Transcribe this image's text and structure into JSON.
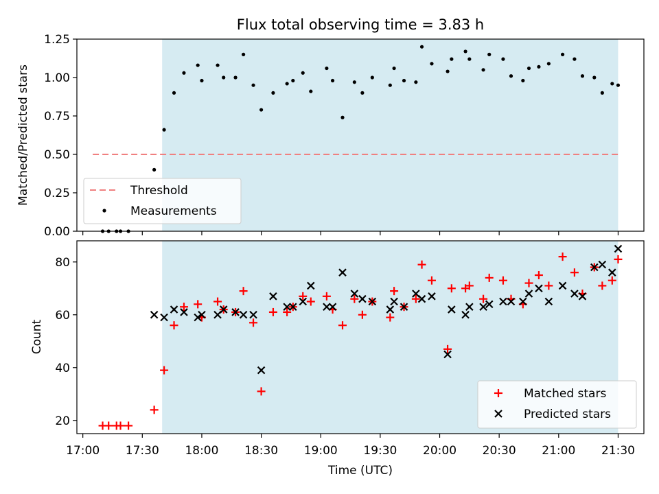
{
  "chart_data": [
    {
      "type": "scatter",
      "title": "Flux total observing time = 3.83 h",
      "xlabel": "",
      "ylabel": "Matched/Predicted stars",
      "ylim": [
        0,
        1.25
      ],
      "yticks": [
        "0.00",
        "0.25",
        "0.50",
        "0.75",
        "1.00",
        "1.25"
      ],
      "x_range": [
        "16:57",
        "21:43"
      ],
      "shaded_region": [
        "17:40",
        "21:30"
      ],
      "threshold": {
        "value": 0.5,
        "x": [
          "17:05",
          "21:30"
        ]
      },
      "legend": {
        "placement": "lower-left",
        "entries": [
          "Threshold",
          "Measurements"
        ]
      },
      "series": [
        {
          "name": "Measurements",
          "x": [
            "17:10",
            "17:13",
            "17:17",
            "17:19",
            "17:23",
            "17:36",
            "17:41",
            "17:46",
            "17:51",
            "17:58",
            "18:00",
            "18:08",
            "18:11",
            "18:17",
            "18:21",
            "18:26",
            "18:30",
            "18:36",
            "18:43",
            "18:46",
            "18:51",
            "18:55",
            "19:03",
            "19:06",
            "19:11",
            "19:17",
            "19:21",
            "19:26",
            "19:35",
            "19:37",
            "19:42",
            "19:48",
            "19:51",
            "19:56",
            "20:04",
            "20:06",
            "20:13",
            "20:15",
            "20:22",
            "20:25",
            "20:32",
            "20:36",
            "20:42",
            "20:45",
            "20:50",
            "20:55",
            "21:02",
            "21:08",
            "21:12",
            "21:18",
            "21:22",
            "21:27",
            "21:30"
          ],
          "y": [
            0.0,
            0.0,
            0.0,
            0.0,
            0.0,
            0.4,
            0.66,
            0.9,
            1.03,
            1.08,
            0.98,
            1.08,
            1.0,
            1.0,
            1.15,
            0.95,
            0.79,
            0.9,
            0.96,
            0.98,
            1.03,
            0.91,
            1.06,
            0.98,
            0.74,
            0.97,
            0.9,
            1.0,
            0.95,
            1.06,
            0.98,
            0.97,
            1.2,
            1.09,
            1.04,
            1.12,
            1.17,
            1.12,
            1.05,
            1.15,
            1.12,
            1.01,
            0.98,
            1.06,
            1.07,
            1.09,
            1.15,
            1.12,
            1.01,
            1.0,
            0.9,
            0.96,
            0.95
          ]
        }
      ]
    },
    {
      "type": "scatter",
      "title": "",
      "xlabel": "Time (UTC)",
      "ylabel": "Count",
      "ylim": [
        15,
        88
      ],
      "yticks": [
        "20",
        "40",
        "60",
        "80"
      ],
      "xticks": [
        "17:00",
        "17:30",
        "18:00",
        "18:30",
        "19:00",
        "19:30",
        "20:00",
        "20:30",
        "21:00",
        "21:30"
      ],
      "x_range": [
        "16:57",
        "21:43"
      ],
      "shaded_region": [
        "17:40",
        "21:30"
      ],
      "legend": {
        "placement": "lower-right",
        "entries": [
          "Matched stars",
          "Predicted stars"
        ]
      },
      "series": [
        {
          "name": "Matched stars",
          "x": [
            "17:10",
            "17:13",
            "17:17",
            "17:19",
            "17:23",
            "17:36",
            "17:41",
            "17:46",
            "17:51",
            "17:58",
            "18:00",
            "18:08",
            "18:11",
            "18:17",
            "18:21",
            "18:26",
            "18:30",
            "18:36",
            "18:43",
            "18:46",
            "18:51",
            "18:55",
            "19:03",
            "19:06",
            "19:11",
            "19:17",
            "19:21",
            "19:26",
            "19:35",
            "19:37",
            "19:42",
            "19:48",
            "19:51",
            "19:56",
            "20:04",
            "20:06",
            "20:13",
            "20:15",
            "20:22",
            "20:25",
            "20:32",
            "20:36",
            "20:42",
            "20:45",
            "20:50",
            "20:55",
            "21:02",
            "21:08",
            "21:12",
            "21:18",
            "21:22",
            "21:27",
            "21:30"
          ],
          "y": [
            18,
            18,
            18,
            18,
            18,
            24,
            39,
            56,
            63,
            64,
            59,
            65,
            62,
            61,
            69,
            57,
            31,
            61,
            61,
            63,
            67,
            65,
            67,
            62,
            56,
            66,
            60,
            65,
            59,
            69,
            63,
            66,
            79,
            73,
            47,
            70,
            70,
            71,
            66,
            74,
            73,
            66,
            64,
            72,
            75,
            71,
            82,
            76,
            68,
            78,
            71,
            73,
            81
          ]
        },
        {
          "name": "Predicted stars",
          "x": [
            "17:36",
            "17:41",
            "17:46",
            "17:51",
            "17:58",
            "18:00",
            "18:08",
            "18:11",
            "18:17",
            "18:21",
            "18:26",
            "18:30",
            "18:36",
            "18:43",
            "18:46",
            "18:51",
            "18:55",
            "19:03",
            "19:06",
            "19:11",
            "19:17",
            "19:21",
            "19:26",
            "19:35",
            "19:37",
            "19:42",
            "19:48",
            "19:51",
            "19:56",
            "20:04",
            "20:06",
            "20:13",
            "20:15",
            "20:22",
            "20:25",
            "20:32",
            "20:36",
            "20:42",
            "20:45",
            "20:50",
            "20:55",
            "21:02",
            "21:08",
            "21:12",
            "21:18",
            "21:22",
            "21:27",
            "21:30"
          ],
          "y": [
            60,
            59,
            62,
            61,
            59,
            60,
            60,
            62,
            61,
            60,
            60,
            39,
            67,
            63,
            63,
            65,
            71,
            63,
            63,
            76,
            68,
            66,
            65,
            62,
            65,
            63,
            68,
            66,
            67,
            45,
            62,
            60,
            63,
            63,
            64,
            65,
            65,
            65,
            68,
            70,
            65,
            71,
            68,
            67,
            78,
            79,
            76,
            85
          ]
        }
      ]
    }
  ]
}
